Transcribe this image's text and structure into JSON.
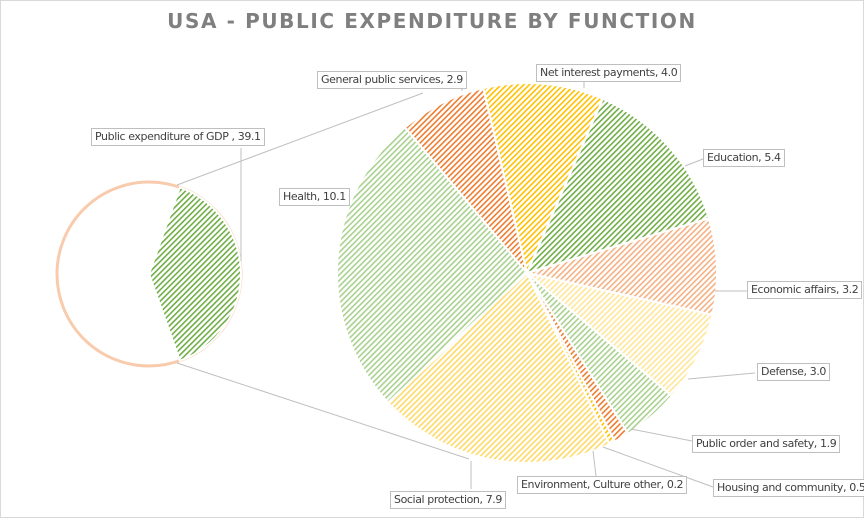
{
  "chart_data": {
    "type": "pie",
    "subtype": "pie-of-pie",
    "title": "USA - PUBLIC EXPENDITURE BY FUNCTION",
    "primary": {
      "series": [
        {
          "name": "Public expenditure of GDP",
          "value": 39.1,
          "color": "#70ad47"
        }
      ]
    },
    "secondary": {
      "series": [
        {
          "name": "General public services",
          "value": 2.9,
          "color": "#ed7d31"
        },
        {
          "name": "Net interest payments",
          "value": 4.0,
          "color": "#ffc000"
        },
        {
          "name": "Education",
          "value": 5.4,
          "color": "#70ad47"
        },
        {
          "name": "Economic affairs",
          "value": 3.2,
          "color": "#f4b183"
        },
        {
          "name": "Defense",
          "value": 3.0,
          "color": "#ffe699"
        },
        {
          "name": "Public order and safety",
          "value": 1.9,
          "color": "#a9d18e"
        },
        {
          "name": "Housing and community",
          "value": 0.5,
          "color": "#ed7d31"
        },
        {
          "name": "Environment, Culture other",
          "value": 0.2,
          "color": "#ffc000"
        },
        {
          "name": "Social protection",
          "value": 7.9,
          "color": "#ffd966"
        },
        {
          "name": "Health",
          "value": 10.1,
          "color": "#a9d18e"
        }
      ]
    },
    "labels": {
      "gdp": "Public expenditure of GDP , 39.1",
      "general": "General public services, 2.9",
      "interest": "Net interest payments, 4.0",
      "education": "Education, 5.4",
      "economic": "Economic affairs, 3.2",
      "defense": "Defense, 3.0",
      "public_order": "Public order and safety, 1.9",
      "housing": "Housing and community, 0.5",
      "environment": "Environment, Culture other, 0.2",
      "social": "Social protection, 7.9",
      "health": "Health, 10.1"
    }
  }
}
